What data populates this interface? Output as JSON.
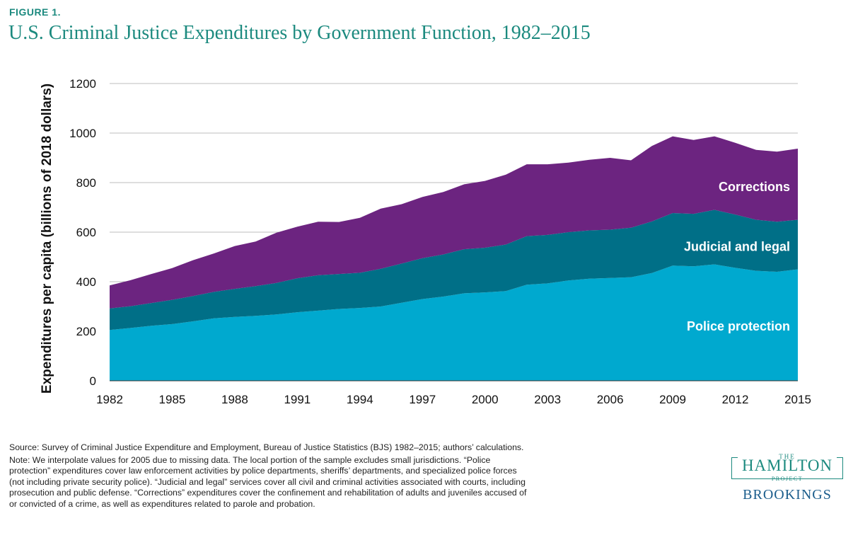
{
  "header": {
    "figure_label": "FIGURE 1.",
    "title": "U.S. Criminal Justice Expenditures by Government Function, 1982–2015"
  },
  "chart_data": {
    "type": "area",
    "stacked": true,
    "ylabel": "Expenditures per capita (billions of 2018 dollars)",
    "xlabel": "",
    "ylim": [
      0,
      1200
    ],
    "yticks": [
      0,
      200,
      400,
      600,
      800,
      1000,
      1200
    ],
    "xticks": [
      1982,
      1985,
      1988,
      1991,
      1994,
      1997,
      2000,
      2003,
      2006,
      2009,
      2012,
      2015
    ],
    "xlim": [
      1982,
      2015
    ],
    "grid": "horizontal",
    "legend": "inline labels on the right",
    "x": [
      1982,
      1983,
      1984,
      1985,
      1986,
      1987,
      1988,
      1989,
      1990,
      1991,
      1992,
      1993,
      1994,
      1995,
      1996,
      1997,
      1998,
      1999,
      2000,
      2001,
      2002,
      2003,
      2004,
      2005,
      2006,
      2007,
      2008,
      2009,
      2010,
      2011,
      2012,
      2013,
      2014,
      2015
    ],
    "series": [
      {
        "name": "Police protection",
        "color": "#00a9cf",
        "values": [
          205,
          213,
          222,
          229,
          240,
          252,
          258,
          262,
          268,
          277,
          283,
          290,
          294,
          300,
          315,
          330,
          340,
          353,
          357,
          362,
          388,
          393,
          405,
          412,
          415,
          418,
          435,
          465,
          462,
          470,
          456,
          444,
          440,
          450
        ]
      },
      {
        "name": "Judicial and legal",
        "color": "#006f87",
        "values": [
          87,
          88,
          92,
          98,
          102,
          107,
          113,
          120,
          127,
          137,
          143,
          141,
          142,
          152,
          158,
          165,
          170,
          178,
          180,
          188,
          196,
          196,
          195,
          195,
          195,
          200,
          208,
          212,
          212,
          220,
          215,
          206,
          202,
          200
        ]
      },
      {
        "name": "Corrections",
        "color": "#6c2480",
        "values": [
          93,
          105,
          117,
          128,
          145,
          155,
          173,
          180,
          203,
          208,
          216,
          210,
          222,
          243,
          240,
          247,
          252,
          262,
          270,
          282,
          290,
          285,
          281,
          285,
          290,
          272,
          305,
          310,
          298,
          297,
          290,
          282,
          283,
          287
        ]
      }
    ]
  },
  "notes": {
    "source": "Source: Survey of Criminal Justice Expenditure and Employment, Bureau of Justice Statistics (BJS) 1982–2015; authors’ calculations.",
    "note": "Note: We interpolate values for 2005 due to missing data. The local portion of the sample excludes small jurisdictions. “Police protection” expenditures cover law enforcement activities by police departments, sheriffs’ departments, and specialized police forces (not including private security police). “Judicial and legal” services cover all civil and criminal activities associated with courts, including prosecution and public defense. “Corrections” expenditures cover the confinement and rehabilitation of adults and juveniles accused of or convicted of a crime, as well as expenditures related to parole and probation."
  },
  "logo": {
    "the": "THE",
    "hamilton": "HAMILTON",
    "project": "PROJECT",
    "brookings": "BROOKINGS"
  }
}
